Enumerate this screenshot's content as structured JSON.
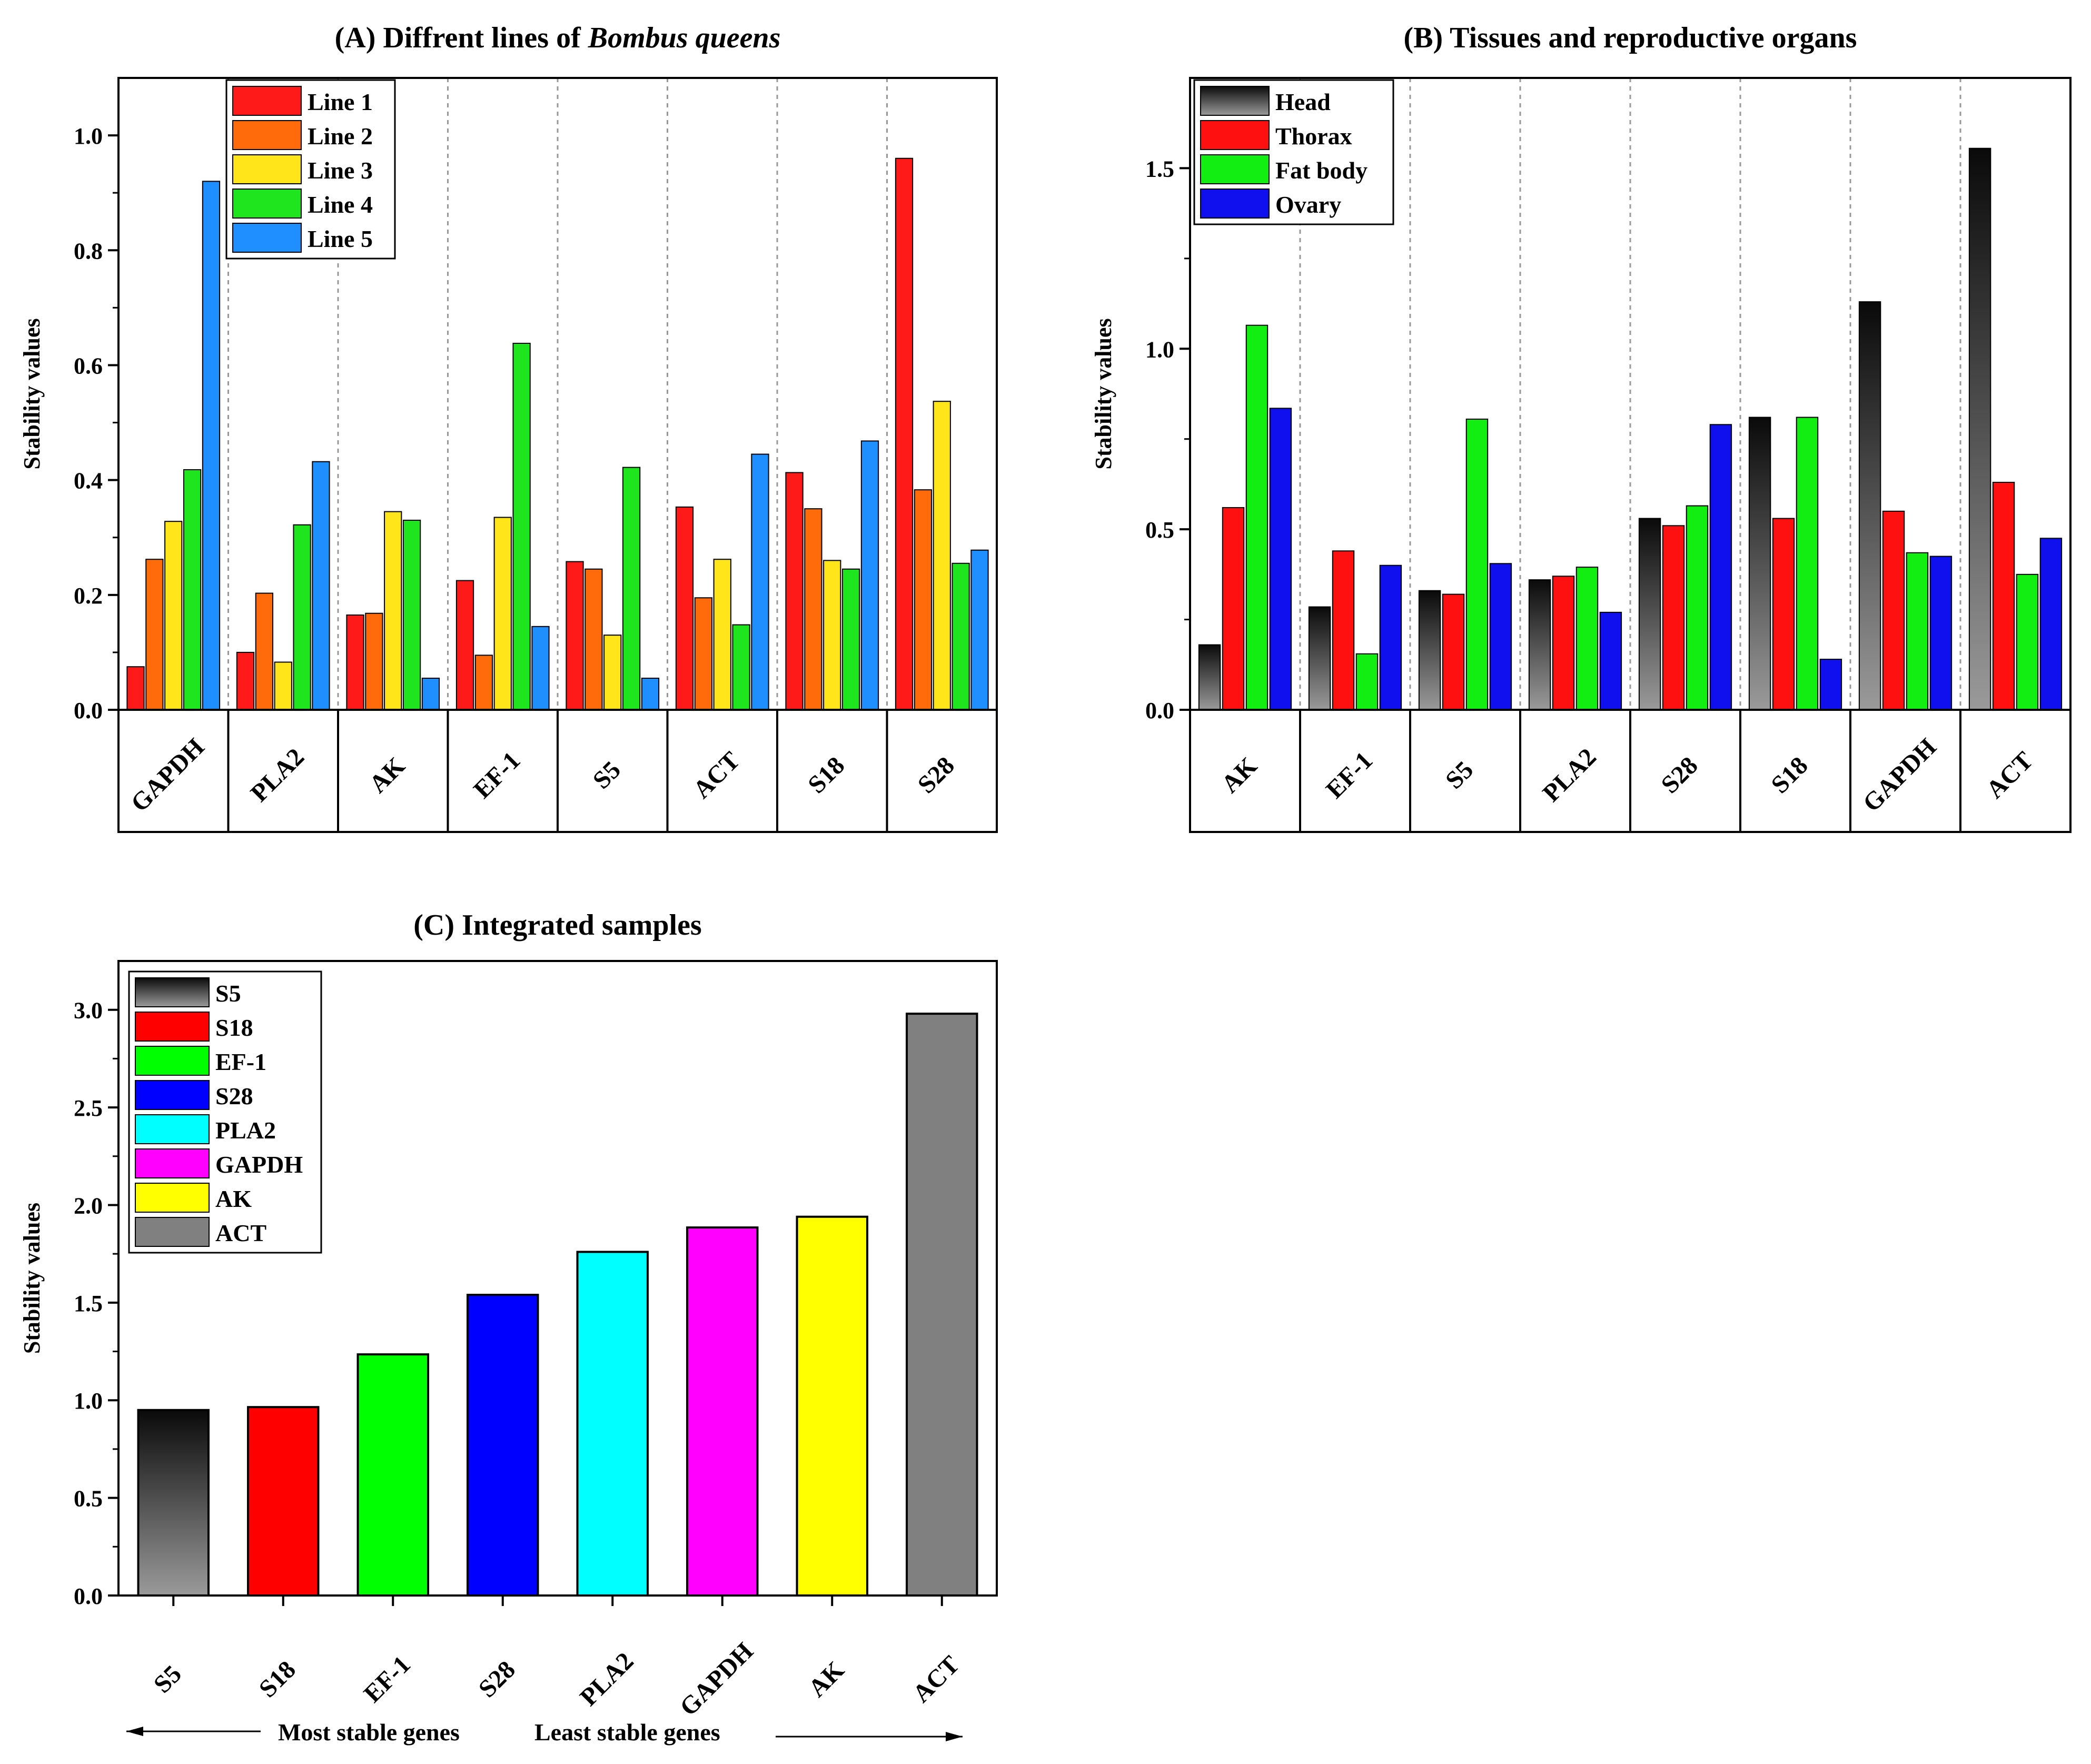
{
  "chart_data": [
    {
      "type": "bar",
      "title_prefix": "(A) Diffrent lines of ",
      "title_italic": "Bombus queens",
      "ylabel": "Stability values",
      "ylim": [
        0,
        1.1
      ],
      "yticks": [
        0.0,
        0.2,
        0.4,
        0.6,
        0.8,
        1.0
      ],
      "ytick_labels": [
        "0.0",
        "0.2",
        "0.4",
        "0.6",
        "0.8",
        "1.0"
      ],
      "categories": [
        "GAPDH",
        "PLA2",
        "AK",
        "EF-1",
        "S5",
        "ACT",
        "S18",
        "S28"
      ],
      "legend_position": "top-left",
      "series": [
        {
          "name": "Line 1",
          "color": "#ff1a1a",
          "values": [
            0.075,
            0.1,
            0.165,
            0.225,
            0.258,
            0.353,
            0.413,
            0.96
          ]
        },
        {
          "name": "Line 2",
          "color": "#ff6a0a",
          "values": [
            0.262,
            0.203,
            0.168,
            0.095,
            0.245,
            0.195,
            0.35,
            0.383
          ]
        },
        {
          "name": "Line 3",
          "color": "#ffe51a",
          "values": [
            0.328,
            0.083,
            0.345,
            0.335,
            0.13,
            0.262,
            0.26,
            0.537
          ]
        },
        {
          "name": "Line 4",
          "color": "#1ee51e",
          "values": [
            0.418,
            0.322,
            0.33,
            0.638,
            0.422,
            0.148,
            0.245,
            0.255
          ]
        },
        {
          "name": "Line 5",
          "color": "#1f8fff",
          "values": [
            0.92,
            0.432,
            0.055,
            0.145,
            0.055,
            0.445,
            0.468,
            0.278
          ]
        }
      ]
    },
    {
      "type": "bar",
      "title": "(B) Tissues and reproductive organs",
      "ylabel": "Stability values",
      "ylim": [
        0,
        1.75
      ],
      "yticks": [
        0.0,
        0.5,
        1.0,
        1.5
      ],
      "ytick_labels": [
        "0.0",
        "0.5",
        "1.0",
        "1.5"
      ],
      "categories": [
        "AK",
        "EF-1",
        "S5",
        "PLA2",
        "S28",
        "S18",
        "GAPDH",
        "ACT"
      ],
      "legend_position": "top-left",
      "series": [
        {
          "name": "Head",
          "color": "#333333",
          "gradient": true,
          "values": [
            0.18,
            0.285,
            0.33,
            0.36,
            0.53,
            0.81,
            1.13,
            1.555
          ]
        },
        {
          "name": "Thorax",
          "color": "#ff1010",
          "values": [
            0.56,
            0.44,
            0.32,
            0.37,
            0.51,
            0.53,
            0.55,
            0.63
          ]
        },
        {
          "name": "Fat body",
          "color": "#12ee12",
          "values": [
            1.065,
            0.155,
            0.805,
            0.395,
            0.565,
            0.81,
            0.435,
            0.375
          ]
        },
        {
          "name": "Ovary",
          "color": "#1010ee",
          "values": [
            0.835,
            0.4,
            0.405,
            0.27,
            0.79,
            0.14,
            0.425,
            0.475
          ]
        }
      ]
    },
    {
      "type": "bar",
      "title": "(C) Integrated samples",
      "ylabel": "Stability values",
      "ylim": [
        0,
        3.25
      ],
      "yticks": [
        0.0,
        0.5,
        1.0,
        1.5,
        2.0,
        2.5,
        3.0
      ],
      "ytick_labels": [
        "0.0",
        "0.5",
        "1.0",
        "1.5",
        "2.0",
        "2.5",
        "3.0"
      ],
      "categories": [
        "S5",
        "S18",
        "EF-1",
        "S28",
        "PLA2",
        "GAPDH",
        "AK",
        "ACT"
      ],
      "values": [
        0.95,
        0.965,
        1.235,
        1.54,
        1.76,
        1.885,
        1.94,
        2.98
      ],
      "colors": [
        "#333333",
        "#ff0000",
        "#00ff00",
        "#0000ff",
        "#00ffff",
        "#ff00ff",
        "#ffff00",
        "#808080"
      ],
      "legend_position": "top-left",
      "legend": [
        "S5",
        "S18",
        "EF-1",
        "S28",
        "PLA2",
        "GAPDH",
        "AK",
        "ACT"
      ],
      "annotation_left": "Most stable genes",
      "annotation_right": "Least stable genes"
    }
  ]
}
